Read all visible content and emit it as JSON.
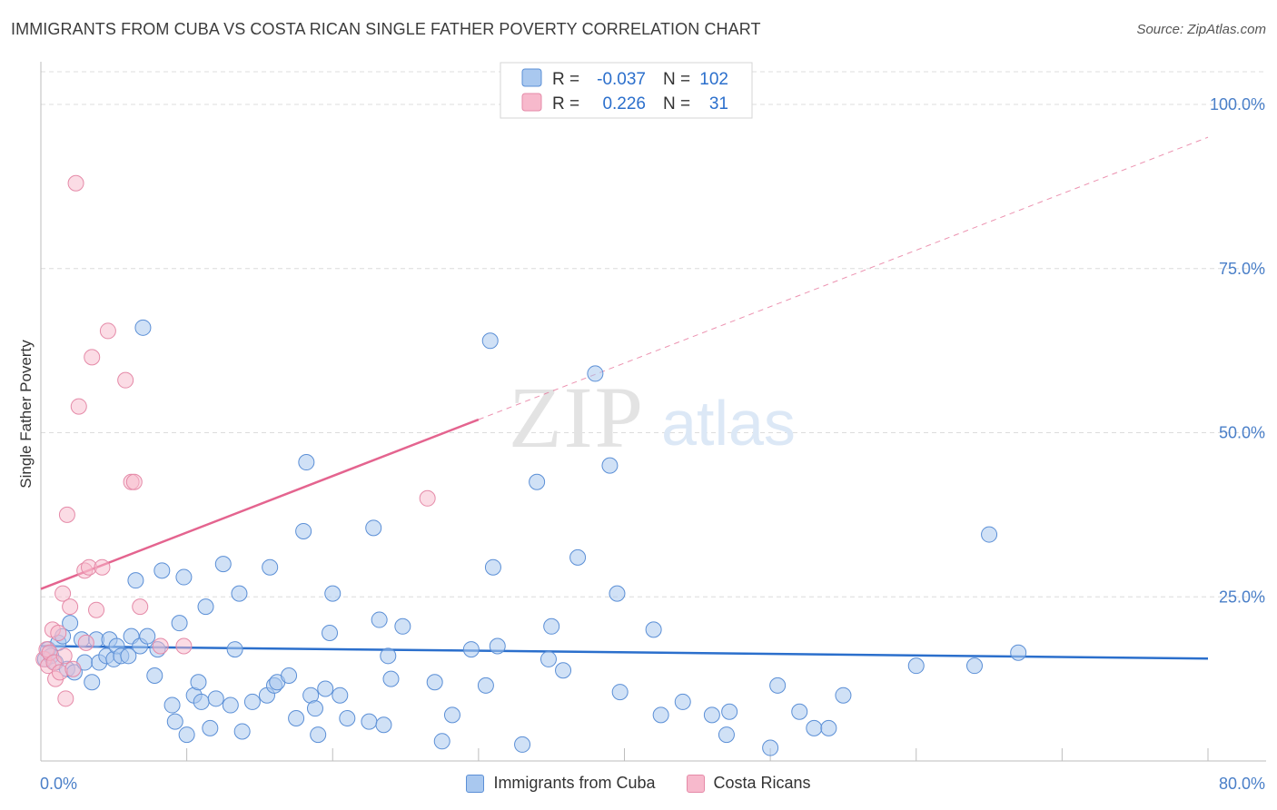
{
  "header": {
    "title": "IMMIGRANTS FROM CUBA VS COSTA RICAN SINGLE FATHER POVERTY CORRELATION CHART",
    "source": "Source: ZipAtlas.com"
  },
  "watermark": {
    "zip": "ZIP",
    "atlas": "atlas"
  },
  "colors": {
    "blue_fill": "#a9c8ef",
    "blue_stroke": "#5b8fd6",
    "blue_line": "#2b6fcc",
    "pink_fill": "#f7b9cc",
    "pink_stroke": "#e58aa8",
    "pink_line": "#e4648f",
    "grid": "#dcdcdc",
    "tick_label": "#4a7fc8"
  },
  "chart_data": {
    "type": "scatter",
    "title": "IMMIGRANTS FROM CUBA VS COSTA RICAN SINGLE FATHER POVERTY CORRELATION CHART",
    "xlabel": "",
    "ylabel": "Single Father Poverty",
    "xlim": [
      0,
      80
    ],
    "ylim": [
      0,
      100
    ],
    "x_tick_labels": [
      "0.0%",
      "80.0%"
    ],
    "y_ticks": [
      25,
      50,
      75,
      100
    ],
    "y_tick_labels": [
      "25.0%",
      "50.0%",
      "75.0%",
      "100.0%"
    ],
    "legend_position": "top-center",
    "stats": [
      {
        "r_label": "R =",
        "r": "-0.037",
        "n_label": "N =",
        "n": "102"
      },
      {
        "r_label": "R =",
        "r": "0.226",
        "n_label": "N =",
        "n": "31"
      }
    ],
    "series": [
      {
        "name": "Immigrants from Cuba",
        "color": "#5b8fd6",
        "trend": {
          "x0": 0,
          "y0": 17.5,
          "x1": 80,
          "y1": 15.6
        },
        "points": [
          [
            0.3,
            15.5
          ],
          [
            0.5,
            17
          ],
          [
            0.7,
            16
          ],
          [
            1.0,
            15
          ],
          [
            1.2,
            18
          ],
          [
            1.5,
            19
          ],
          [
            1.8,
            14
          ],
          [
            2.0,
            21
          ],
          [
            2.3,
            13.5
          ],
          [
            2.8,
            18.5
          ],
          [
            3.0,
            15
          ],
          [
            3.5,
            12
          ],
          [
            3.8,
            18.5
          ],
          [
            4.0,
            15
          ],
          [
            4.5,
            16
          ],
          [
            4.7,
            18.5
          ],
          [
            5.0,
            15.5
          ],
          [
            5.2,
            17.5
          ],
          [
            5.5,
            16
          ],
          [
            6.0,
            16
          ],
          [
            6.2,
            19
          ],
          [
            6.5,
            27.5
          ],
          [
            6.8,
            17.5
          ],
          [
            7.0,
            66
          ],
          [
            7.3,
            19
          ],
          [
            7.8,
            13
          ],
          [
            8.0,
            17
          ],
          [
            8.3,
            29
          ],
          [
            9.0,
            8.5
          ],
          [
            9.2,
            6
          ],
          [
            9.5,
            21
          ],
          [
            9.8,
            28
          ],
          [
            10.0,
            4
          ],
          [
            10.5,
            10
          ],
          [
            10.8,
            12
          ],
          [
            11.0,
            9
          ],
          [
            11.3,
            23.5
          ],
          [
            11.6,
            5
          ],
          [
            12.0,
            9.5
          ],
          [
            12.5,
            30
          ],
          [
            13.0,
            8.5
          ],
          [
            13.3,
            17
          ],
          [
            13.6,
            25.5
          ],
          [
            13.8,
            4.5
          ],
          [
            14.5,
            9
          ],
          [
            15.5,
            10
          ],
          [
            15.7,
            29.5
          ],
          [
            16.0,
            11.5
          ],
          [
            16.2,
            12
          ],
          [
            17.0,
            13
          ],
          [
            17.5,
            6.5
          ],
          [
            18.0,
            35
          ],
          [
            18.2,
            45.5
          ],
          [
            18.5,
            10
          ],
          [
            18.8,
            8
          ],
          [
            19.0,
            4
          ],
          [
            19.5,
            11
          ],
          [
            19.8,
            19.5
          ],
          [
            20.0,
            25.5
          ],
          [
            20.5,
            10
          ],
          [
            21.0,
            6.5
          ],
          [
            22.5,
            6
          ],
          [
            22.8,
            35.5
          ],
          [
            23.2,
            21.5
          ],
          [
            23.5,
            5.5
          ],
          [
            23.8,
            16
          ],
          [
            24.0,
            12.5
          ],
          [
            24.8,
            20.5
          ],
          [
            27.0,
            12
          ],
          [
            27.5,
            3
          ],
          [
            28.2,
            7
          ],
          [
            29.5,
            17
          ],
          [
            30.5,
            11.5
          ],
          [
            30.8,
            64
          ],
          [
            31.0,
            29.5
          ],
          [
            31.3,
            17.5
          ],
          [
            33.0,
            2.5
          ],
          [
            34.0,
            42.5
          ],
          [
            34.8,
            15.5
          ],
          [
            35.0,
            20.5
          ],
          [
            35.8,
            13.8
          ],
          [
            36.8,
            31
          ],
          [
            38.0,
            59
          ],
          [
            39.0,
            45
          ],
          [
            39.5,
            25.5
          ],
          [
            39.7,
            10.5
          ],
          [
            42.0,
            20
          ],
          [
            42.5,
            7
          ],
          [
            44.0,
            9
          ],
          [
            46.0,
            7
          ],
          [
            47.0,
            4
          ],
          [
            47.2,
            7.5
          ],
          [
            50.0,
            2
          ],
          [
            50.5,
            11.5
          ],
          [
            52.0,
            7.5
          ],
          [
            53.0,
            5
          ],
          [
            54.0,
            5
          ],
          [
            55.0,
            10
          ],
          [
            60.0,
            14.5
          ],
          [
            64.0,
            14.5
          ],
          [
            65.0,
            34.5
          ],
          [
            67.0,
            16.5
          ]
        ]
      },
      {
        "name": "Costa Ricans",
        "color": "#e58aa8",
        "trend": {
          "x0": 0,
          "y0": 26.2,
          "x1": 80,
          "y1": 95
        },
        "trend_solid_until_x": 30,
        "points": [
          [
            0.2,
            15.5
          ],
          [
            0.4,
            17
          ],
          [
            0.5,
            14.5
          ],
          [
            0.6,
            16.5
          ],
          [
            0.8,
            20
          ],
          [
            0.9,
            15
          ],
          [
            1.0,
            12.5
          ],
          [
            1.2,
            19.5
          ],
          [
            1.3,
            13.5
          ],
          [
            1.5,
            25.5
          ],
          [
            1.6,
            16
          ],
          [
            1.7,
            9.5
          ],
          [
            1.8,
            37.5
          ],
          [
            2.0,
            23.5
          ],
          [
            2.2,
            14
          ],
          [
            2.4,
            88
          ],
          [
            2.6,
            54
          ],
          [
            3.0,
            29
          ],
          [
            3.3,
            29.5
          ],
          [
            3.5,
            61.5
          ],
          [
            3.8,
            23
          ],
          [
            4.2,
            29.5
          ],
          [
            4.6,
            65.5
          ],
          [
            5.8,
            58
          ],
          [
            6.2,
            42.5
          ],
          [
            6.4,
            42.5
          ],
          [
            6.8,
            23.5
          ],
          [
            8.2,
            17.5
          ],
          [
            9.8,
            17.5
          ],
          [
            26.5,
            40
          ],
          [
            3.1,
            18
          ]
        ]
      }
    ]
  }
}
